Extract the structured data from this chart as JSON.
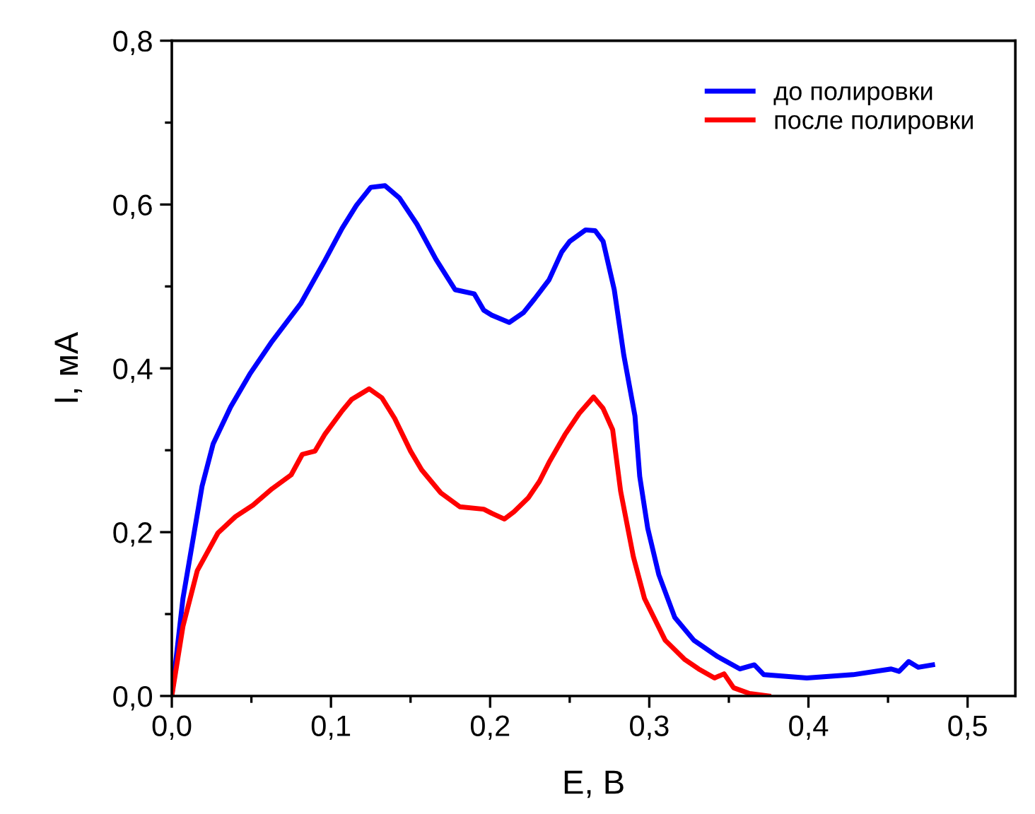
{
  "chart_data": {
    "type": "line",
    "xlabel": "E, В",
    "ylabel": "I, мА",
    "xlim": [
      0,
      0.53
    ],
    "ylim": [
      0,
      0.8
    ],
    "xticks": [
      {
        "value": 0,
        "label": "0,0"
      },
      {
        "value": 0.1,
        "label": "0,1"
      },
      {
        "value": 0.2,
        "label": "0,2"
      },
      {
        "value": 0.3,
        "label": "0,3"
      },
      {
        "value": 0.4,
        "label": "0,4"
      },
      {
        "value": 0.5,
        "label": "0,5"
      }
    ],
    "yticks": [
      {
        "value": 0,
        "label": "0,0"
      },
      {
        "value": 0.2,
        "label": "0,2"
      },
      {
        "value": 0.4,
        "label": "0,4"
      },
      {
        "value": 0.6,
        "label": "0,6"
      },
      {
        "value": 0.8,
        "label": "0,8"
      }
    ],
    "grid": false,
    "legend": "top right",
    "marker": "none",
    "line_style": "solid",
    "series": [
      {
        "name": "до полировки",
        "color": "#0000ff",
        "x": [
          0,
          0.007,
          0.012,
          0.019,
          0.026,
          0.037,
          0.049,
          0.063,
          0.081,
          0.096,
          0.107,
          0.116,
          0.125,
          0.134,
          0.143,
          0.154,
          0.166,
          0.178,
          0.19,
          0.196,
          0.201,
          0.212,
          0.221,
          0.228,
          0.237,
          0.245,
          0.25,
          0.26,
          0.266,
          0.271,
          0.278,
          0.284,
          0.291,
          0.294,
          0.299,
          0.306,
          0.316,
          0.328,
          0.343,
          0.357,
          0.366,
          0.372,
          0.399,
          0.428,
          0.452,
          0.457,
          0.463,
          0.469,
          0.478
        ],
        "values": [
          0,
          0.119,
          0.176,
          0.256,
          0.308,
          0.353,
          0.393,
          0.433,
          0.479,
          0.531,
          0.571,
          0.599,
          0.621,
          0.623,
          0.608,
          0.576,
          0.533,
          0.496,
          0.491,
          0.471,
          0.465,
          0.456,
          0.468,
          0.485,
          0.508,
          0.542,
          0.555,
          0.569,
          0.568,
          0.555,
          0.496,
          0.416,
          0.342,
          0.268,
          0.205,
          0.148,
          0.096,
          0.068,
          0.048,
          0.033,
          0.038,
          0.026,
          0.022,
          0.026,
          0.033,
          0.03,
          0.042,
          0.035,
          0.038
        ]
      },
      {
        "name": "после полировки",
        "color": "#ff0000",
        "x": [
          0,
          0.007,
          0.016,
          0.029,
          0.04,
          0.051,
          0.063,
          0.075,
          0.082,
          0.09,
          0.096,
          0.107,
          0.113,
          0.124,
          0.132,
          0.14,
          0.15,
          0.157,
          0.169,
          0.181,
          0.196,
          0.201,
          0.209,
          0.215,
          0.224,
          0.231,
          0.237,
          0.247,
          0.256,
          0.265,
          0.271,
          0.277,
          0.282,
          0.29,
          0.297,
          0.31,
          0.322,
          0.331,
          0.341,
          0.347,
          0.353,
          0.363,
          0.375
        ],
        "values": [
          0,
          0.085,
          0.153,
          0.199,
          0.219,
          0.233,
          0.253,
          0.27,
          0.295,
          0.299,
          0.319,
          0.348,
          0.362,
          0.375,
          0.364,
          0.339,
          0.299,
          0.276,
          0.248,
          0.231,
          0.228,
          0.223,
          0.216,
          0.225,
          0.242,
          0.262,
          0.285,
          0.319,
          0.345,
          0.365,
          0.351,
          0.325,
          0.25,
          0.17,
          0.119,
          0.068,
          0.045,
          0.033,
          0.022,
          0.027,
          0.01,
          0.003,
          0
        ]
      }
    ]
  }
}
